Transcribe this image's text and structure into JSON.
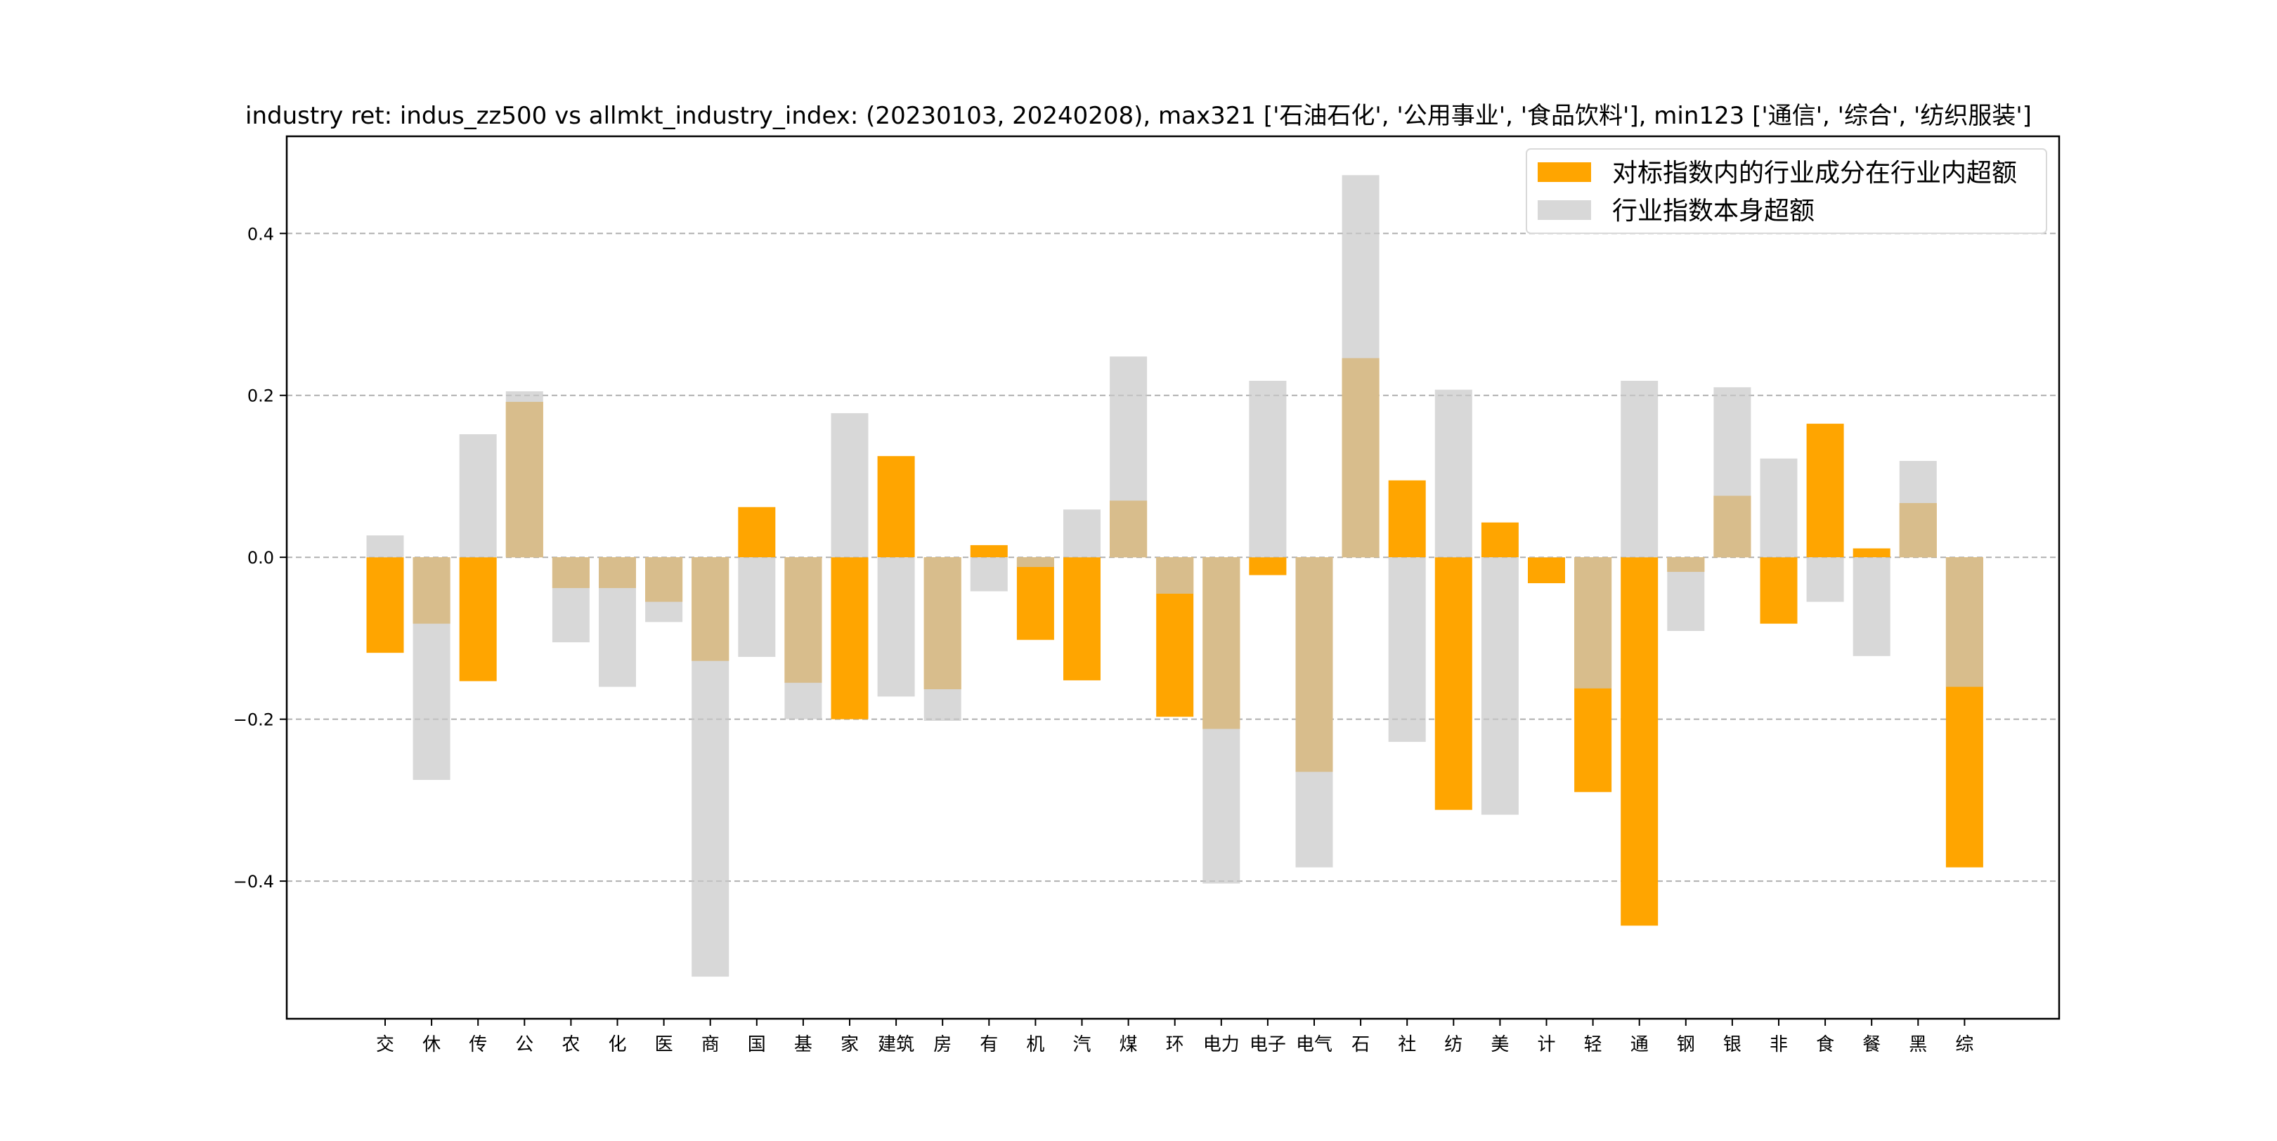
{
  "chart_data": {
    "type": "bar",
    "title": "industry ret: indus_zz500 vs allmkt_industry_index: (20230103, 20240208), max321 ['石油石化', '公用事业', '食品饮料'], min123 ['通信', '综合', '纺织服装']",
    "xlabel": "",
    "ylabel": "",
    "ylim": [
      -0.57,
      0.52
    ],
    "yticks": [
      -0.4,
      -0.2,
      0.0,
      0.2,
      0.4
    ],
    "ytick_labels": [
      "−0.4",
      "−0.2",
      "0.0",
      "0.2",
      "0.4"
    ],
    "grid": "horizontal dashed",
    "legend_position": "top-right",
    "categories": [
      "交",
      "休",
      "传",
      "公",
      "农",
      "化",
      "医",
      "商",
      "国",
      "基",
      "家",
      "建筑",
      "房",
      "有",
      "机",
      "汽",
      "煤",
      "环",
      "电力",
      "电子",
      "电气",
      "石",
      "社",
      "纺",
      "美",
      "计",
      "轻",
      "通",
      "钢",
      "银",
      "非",
      "食",
      "餐",
      "黑",
      "综"
    ],
    "series": [
      {
        "name": "对标指数内的行业成分在行业内超额",
        "color": "#ffa500",
        "values": [
          -0.118,
          -0.082,
          -0.153,
          0.192,
          -0.038,
          -0.038,
          -0.055,
          -0.128,
          0.062,
          -0.155,
          -0.2,
          0.125,
          -0.163,
          0.015,
          -0.102,
          -0.152,
          0.07,
          -0.197,
          -0.212,
          -0.022,
          -0.265,
          0.246,
          0.095,
          -0.312,
          0.043,
          -0.032,
          -0.29,
          -0.455,
          -0.018,
          0.076,
          -0.082,
          0.165,
          0.011,
          0.067,
          -0.383
        ]
      },
      {
        "name": "行业指数本身超额",
        "color": "#c8c8c8",
        "values": [
          0.027,
          -0.275,
          0.152,
          0.205,
          -0.105,
          -0.16,
          -0.08,
          -0.518,
          -0.123,
          -0.2,
          0.178,
          -0.172,
          -0.202,
          -0.042,
          -0.012,
          0.059,
          0.248,
          -0.045,
          -0.403,
          0.218,
          -0.383,
          0.472,
          -0.228,
          0.207,
          -0.318,
          0.0,
          -0.162,
          0.218,
          -0.091,
          0.21,
          0.122,
          -0.055,
          -0.122,
          0.119,
          -0.16
        ]
      }
    ]
  }
}
